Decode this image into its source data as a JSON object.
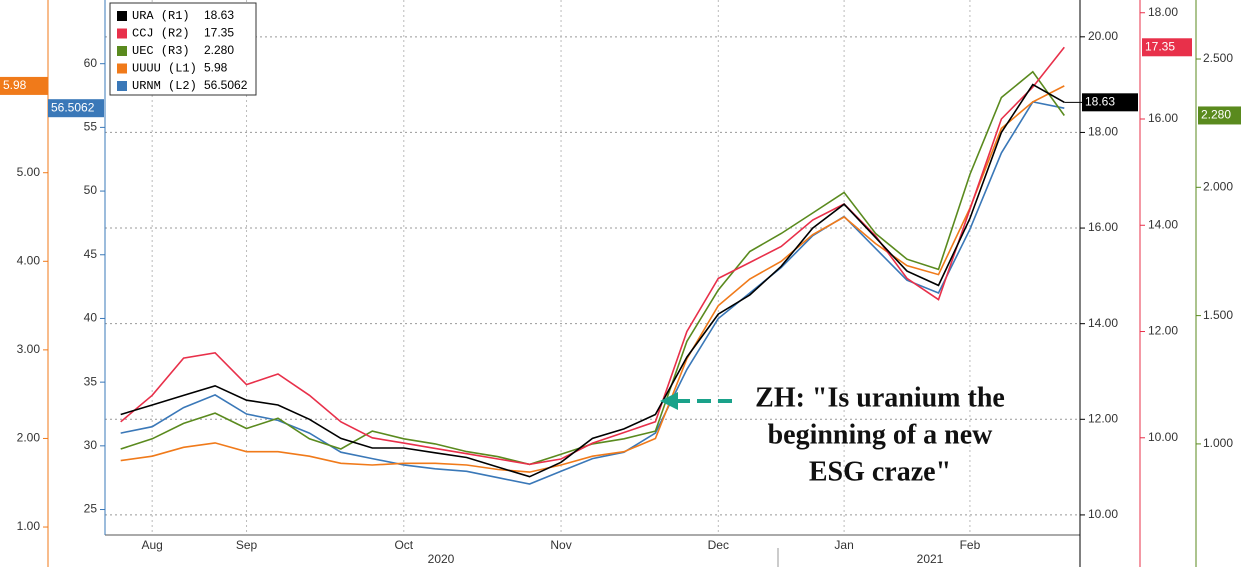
{
  "chart_data": {
    "type": "line",
    "categories": [
      null,
      "Aug",
      null,
      null,
      "Sep",
      null,
      null,
      null,
      null,
      "Oct",
      null,
      null,
      null,
      null,
      "Nov",
      null,
      null,
      null,
      null,
      "Dec",
      null,
      null,
      null,
      "Jan",
      null,
      null,
      null,
      "Feb",
      null,
      null,
      null
    ],
    "x_group_labels": [
      "2020",
      "2021"
    ],
    "grid": true,
    "annotation": [
      "ZH: \"Is uranium the",
      "beginning of a new",
      "ESG craze\""
    ],
    "series": [
      {
        "name": "URA (R1)",
        "last_label": "18.63",
        "color": "#000000",
        "axis": "R1",
        "ylim": [
          9.58,
          20.77
        ],
        "yticks": [
          {
            "value": 10,
            "label": "10.00"
          },
          {
            "value": 12,
            "label": "12.00"
          },
          {
            "value": 14,
            "label": "14.00"
          },
          {
            "value": 16,
            "label": "16.00"
          },
          {
            "value": 18,
            "label": "18.00"
          },
          {
            "value": 20,
            "label": "20.00"
          }
        ],
        "values": [
          12.1,
          12.3,
          12.5,
          12.7,
          12.4,
          12.3,
          12.0,
          11.6,
          11.4,
          11.4,
          11.3,
          11.2,
          11.0,
          10.8,
          11.1,
          11.6,
          11.8,
          12.1,
          13.3,
          14.2,
          14.6,
          15.2,
          16.0,
          16.5,
          15.8,
          15.1,
          14.8,
          16.2,
          18.0,
          19.0,
          18.63
        ]
      },
      {
        "name": "CCJ (R2)",
        "last_label": "17.35",
        "color": "#e8304a",
        "axis": "R2",
        "ylim": [
          8.17,
          18.24
        ],
        "yticks": [
          {
            "value": 10,
            "label": "10.00"
          },
          {
            "value": 12,
            "label": "12.00"
          },
          {
            "value": 14,
            "label": "14.00"
          },
          {
            "value": 16,
            "label": "16.00"
          },
          {
            "value": 18,
            "label": "18.00"
          }
        ],
        "values": [
          10.3,
          10.8,
          11.5,
          11.6,
          11.0,
          11.2,
          10.8,
          10.3,
          10.0,
          9.9,
          9.8,
          9.7,
          9.6,
          9.5,
          9.6,
          9.9,
          10.1,
          10.3,
          12.0,
          13.0,
          13.3,
          13.6,
          14.1,
          14.4,
          13.8,
          13.0,
          12.6,
          14.3,
          16.0,
          16.6,
          17.35
        ]
      },
      {
        "name": "UEC (R3)",
        "last_label": "2.280",
        "color": "#5a8a1e",
        "axis": "R3",
        "ylim": [
          0.645,
          2.73
        ],
        "yticks": [
          {
            "value": 1,
            "label": "1.000"
          },
          {
            "value": 1.5,
            "label": "1.500"
          },
          {
            "value": 2,
            "label": "2.000"
          },
          {
            "value": 2.5,
            "label": "2.500"
          }
        ],
        "values": [
          0.98,
          1.02,
          1.08,
          1.12,
          1.06,
          1.1,
          1.02,
          0.98,
          1.05,
          1.02,
          1.0,
          0.97,
          0.95,
          0.92,
          0.96,
          1.0,
          1.02,
          1.05,
          1.4,
          1.6,
          1.75,
          1.82,
          1.9,
          1.98,
          1.82,
          1.72,
          1.68,
          2.05,
          2.35,
          2.45,
          2.28
        ]
      },
      {
        "name": "UUUU (L1)",
        "last_label": "5.98",
        "color": "#f07a1a",
        "axis": "L1",
        "ylim": [
          0.91,
          6.95
        ],
        "yticks": [
          {
            "value": 1,
            "label": "1.00"
          },
          {
            "value": 2,
            "label": "2.00"
          },
          {
            "value": 3,
            "label": "3.00"
          },
          {
            "value": 4,
            "label": "4.00"
          },
          {
            "value": 5,
            "label": "5.00"
          }
        ],
        "values": [
          1.75,
          1.8,
          1.9,
          1.95,
          1.85,
          1.85,
          1.8,
          1.72,
          1.7,
          1.72,
          1.72,
          1.7,
          1.65,
          1.62,
          1.7,
          1.8,
          1.85,
          2.0,
          2.9,
          3.5,
          3.8,
          4.0,
          4.3,
          4.5,
          4.2,
          3.95,
          3.85,
          4.6,
          5.5,
          5.8,
          5.98
        ]
      },
      {
        "name": "URNM (L2)",
        "last_label": "56.5062",
        "color": "#3a78b8",
        "axis": "L2",
        "ylim": [
          23,
          65
        ],
        "yticks": [
          25,
          30,
          35,
          40,
          45,
          50,
          55,
          60
        ],
        "values": [
          31.0,
          31.5,
          33.0,
          34.0,
          32.5,
          32.0,
          31.0,
          29.5,
          29.0,
          28.5,
          28.2,
          28.0,
          27.5,
          27.0,
          28.0,
          29.0,
          29.5,
          31.0,
          36.0,
          40.0,
          42.0,
          44.0,
          46.5,
          48.0,
          45.5,
          43.0,
          42.0,
          47.0,
          53.0,
          57.0,
          56.5062
        ]
      }
    ]
  }
}
